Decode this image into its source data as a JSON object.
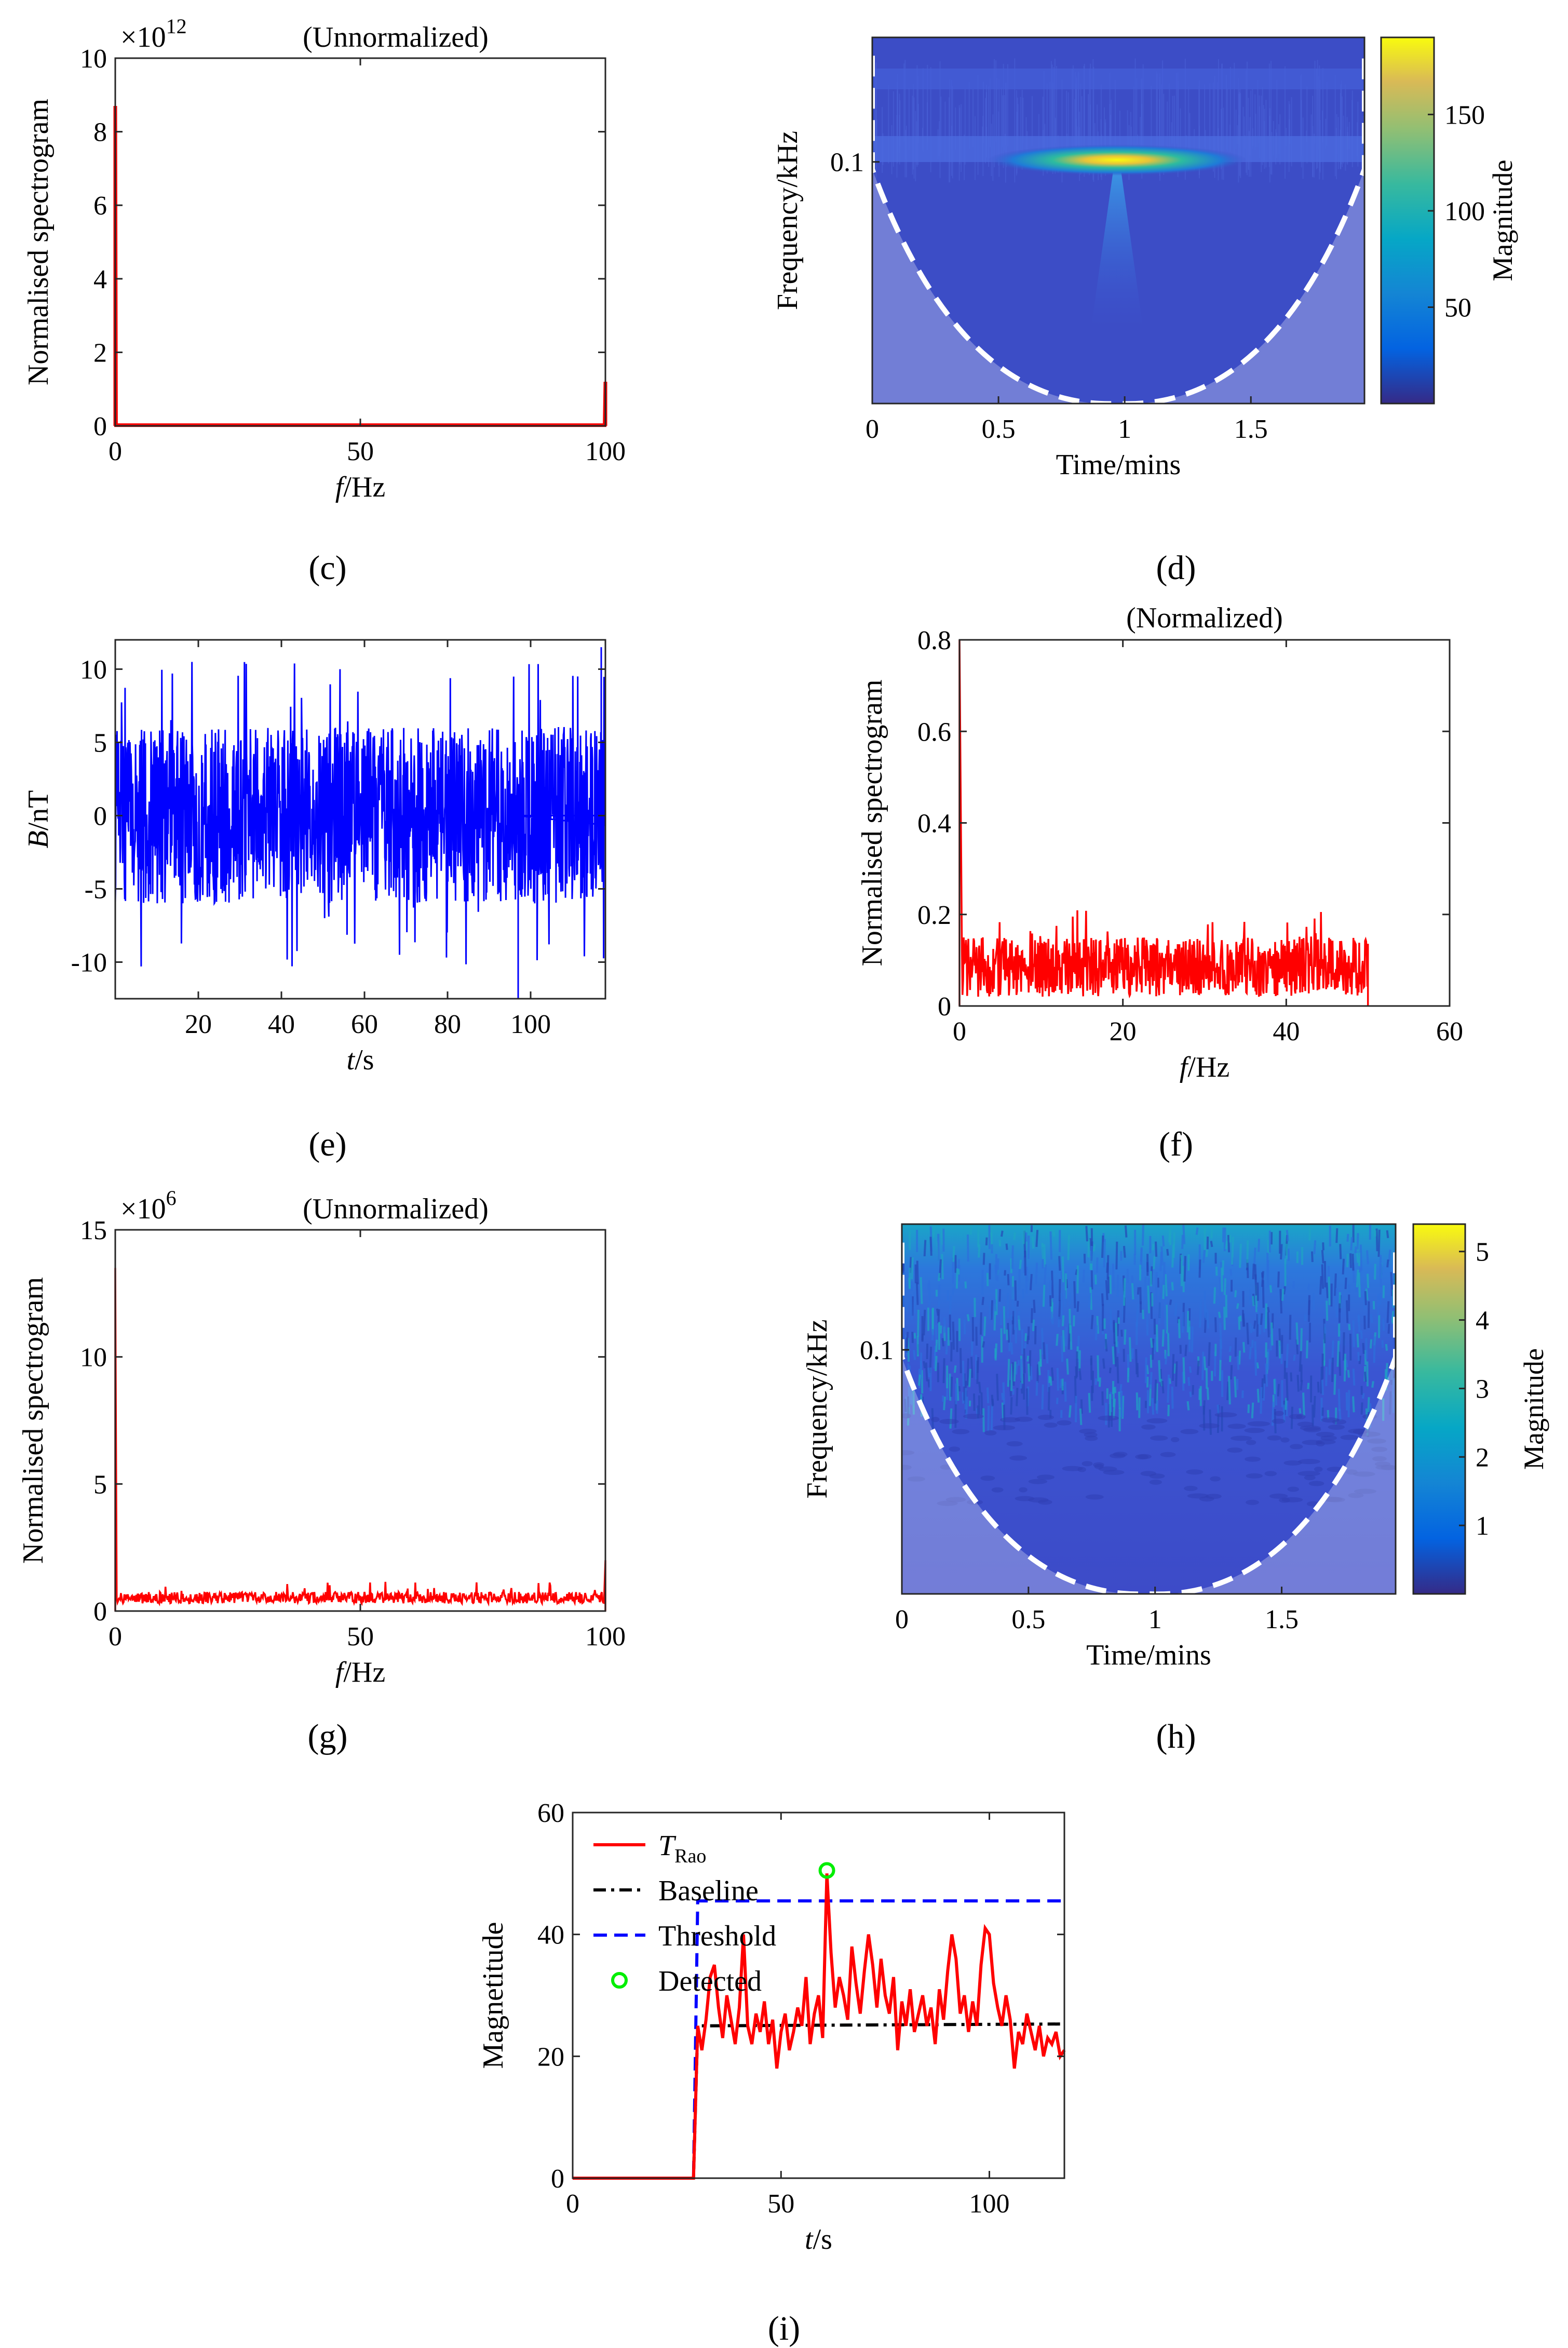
{
  "figure": {
    "panel_labels": [
      "(c)",
      "(d)",
      "(e)",
      "(f)",
      "(g)",
      "(h)",
      "(i)"
    ]
  },
  "chart_data": [
    {
      "id": "c",
      "type": "line",
      "annotation": "(Unnormalized)",
      "exponent_label": "×10",
      "exponent_power": "12",
      "xlabel": "f/Hz",
      "ylabel": "Normalised spectrogram",
      "xlim": [
        0,
        100
      ],
      "ylim": [
        0,
        10
      ],
      "xticks": [
        0,
        50,
        100
      ],
      "yticks": [
        0,
        2,
        4,
        6,
        8,
        10
      ],
      "color": "#ff0000",
      "description_series": {
        "name": "spectrum",
        "spike_start": {
          "x": 0,
          "y": 8.7
        },
        "floor": 0.02,
        "spike_end": {
          "x": 100,
          "y": 1.2
        }
      }
    },
    {
      "id": "d",
      "type": "heatmap",
      "xlabel": "Time/mins",
      "ylabel": "Frequency/kHz",
      "xlim": [
        0,
        1.95
      ],
      "xticks": [
        0,
        0.5,
        1,
        1.5
      ],
      "ytick_labels": [
        "0.1"
      ],
      "colorbar_label": "Magnitude",
      "colorbar_ticks": [
        50,
        100,
        150
      ],
      "colorbar_range": [
        0,
        190
      ],
      "peak": {
        "time": 0.97,
        "magnitude": 185
      }
    },
    {
      "id": "e",
      "type": "line",
      "xlabel": "t/s",
      "ylabel": "B/nT",
      "xlim": [
        0,
        118
      ],
      "ylim": [
        -12.5,
        12
      ],
      "xticks": [
        20,
        40,
        60,
        80,
        100
      ],
      "yticks": [
        -10,
        -5,
        0,
        5,
        10
      ],
      "color": "#0000ff",
      "noise_amplitude": 6,
      "peaks": [
        {
          "x": 97,
          "y": -12.5
        },
        {
          "x": 117,
          "y": 11.5
        }
      ]
    },
    {
      "id": "f",
      "type": "line",
      "annotation": "(Normalized)",
      "xlabel": "f/Hz",
      "ylabel": "Normalised spectrogram",
      "xlim": [
        0,
        60
      ],
      "ylim": [
        0,
        0.8
      ],
      "xticks": [
        0,
        20,
        40,
        60
      ],
      "yticks": [
        0,
        0.2,
        0.4,
        0.6,
        0.8
      ],
      "color": "#ff0000",
      "spike": {
        "x": 0,
        "y": 0.8
      },
      "noise_band": [
        0.02,
        0.21
      ],
      "x_end": 50
    },
    {
      "id": "g",
      "type": "line",
      "annotation": "(Unnormalized)",
      "exponent_label": "×10",
      "exponent_power": "6",
      "xlabel": "f/Hz",
      "ylabel": "Normalised spectrogram",
      "xlim": [
        0,
        100
      ],
      "ylim": [
        0,
        15
      ],
      "xticks": [
        0,
        50,
        100
      ],
      "yticks": [
        0,
        5,
        10,
        15
      ],
      "color": "#ff0000",
      "spike_start": {
        "x": 0,
        "y": 13.5
      },
      "noise_band": [
        0.3,
        1.1
      ],
      "spike_end": {
        "x": 100,
        "y": 2
      }
    },
    {
      "id": "h",
      "type": "heatmap",
      "xlabel": "Time/mins",
      "ylabel": "Frequency/kHz",
      "xlim": [
        0,
        1.95
      ],
      "xticks": [
        0,
        0.5,
        1,
        1.5
      ],
      "ytick_labels": [
        "0.1"
      ],
      "colorbar_label": "Magnitude",
      "colorbar_ticks": [
        1,
        2,
        3,
        4,
        5
      ],
      "colorbar_range": [
        0,
        5.4
      ]
    },
    {
      "id": "i",
      "type": "line",
      "xlabel": "t/s",
      "ylabel": "Magnetitude",
      "xlim": [
        0,
        118
      ],
      "ylim": [
        0,
        60
      ],
      "xticks": [
        0,
        50,
        100
      ],
      "yticks": [
        0,
        20,
        40,
        60
      ],
      "legend_position": "top-left",
      "series": [
        {
          "name": "T",
          "subscript": "Rao",
          "color": "#ff0000",
          "style": "solid",
          "x": [
            0,
            29,
            30,
            31,
            32,
            33,
            34,
            35,
            36,
            37,
            38,
            39,
            40,
            41,
            42,
            43,
            44,
            45,
            46,
            47,
            48,
            49,
            50,
            51,
            52,
            53,
            54,
            55,
            56,
            57,
            58,
            59,
            60,
            61,
            62,
            63,
            64,
            65,
            66,
            67,
            68,
            69,
            70,
            71,
            72,
            73,
            74,
            75,
            76,
            77,
            78,
            79,
            80,
            81,
            82,
            83,
            84,
            85,
            86,
            87,
            88,
            89,
            90,
            91,
            92,
            93,
            94,
            95,
            96,
            97,
            98,
            99,
            100,
            101,
            102,
            103,
            104,
            105,
            106,
            107,
            108,
            109,
            110,
            111,
            112,
            113,
            114,
            115,
            116,
            117,
            118
          ],
          "y": [
            0,
            0,
            25,
            21,
            26,
            33,
            35,
            28,
            23,
            30,
            26,
            22,
            28,
            40,
            25,
            22,
            27,
            24,
            29,
            22,
            26,
            18,
            24,
            27,
            21,
            24,
            28,
            25,
            33,
            22,
            27,
            30,
            23,
            50,
            37,
            28,
            33,
            30,
            26,
            38,
            32,
            27,
            34,
            40,
            35,
            28,
            36,
            30,
            27,
            33,
            21,
            29,
            25,
            31,
            24,
            27,
            30,
            25,
            28,
            22,
            31,
            26,
            34,
            40,
            36,
            27,
            30,
            24,
            29,
            25,
            35,
            41,
            40,
            32,
            28,
            25,
            30,
            26,
            18,
            24,
            22,
            27,
            24,
            21,
            25,
            20,
            23,
            22,
            24,
            20,
            21
          ]
        },
        {
          "name": "Baseline",
          "color": "#000000",
          "style": "dashdot",
          "x": [
            0,
            29,
            30,
            118
          ],
          "y": [
            0,
            0,
            25,
            25.3
          ]
        },
        {
          "name": "Threshold",
          "color": "#0000ff",
          "style": "dashed",
          "x": [
            0,
            29,
            30,
            118
          ],
          "y": [
            0,
            0,
            45.5,
            45.5
          ]
        },
        {
          "name": "Detected",
          "color": "#00ee00",
          "style": "marker-circle",
          "x": [
            61
          ],
          "y": [
            50.5
          ]
        }
      ]
    }
  ]
}
